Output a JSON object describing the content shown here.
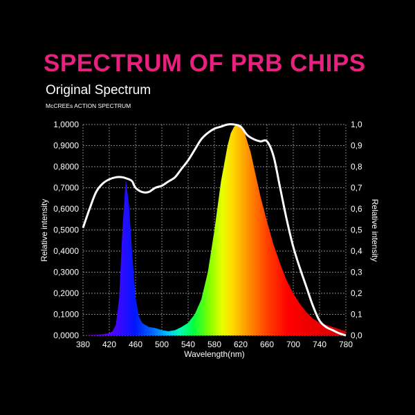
{
  "header": {
    "title": "SPECTRUM OF PRB CHIPS",
    "subtitle": "Original Spectrum",
    "series2_label": "McCREEs ACTION SPECTRUM"
  },
  "colors": {
    "title": "#e8217f",
    "background": "#000000",
    "action_curve": "#ffffff",
    "grid": "#bbbbbb"
  },
  "chart_data": {
    "type": "area",
    "title": "SPECTRUM OF PRB CHIPS",
    "xlabel": "Wavelength(nm)",
    "ylabel_left": "Relative intensity",
    "ylabel_right": "Relative intensity",
    "xlim": [
      380,
      780
    ],
    "ylim": [
      0,
      1
    ],
    "grid": true,
    "x_ticks": [
      "380",
      "420",
      "460",
      "500",
      "540",
      "580",
      "620",
      "660",
      "700",
      "740",
      "780"
    ],
    "y_ticks_left": [
      "0,0000",
      "0,1000",
      "0,2000",
      "0,3000",
      "0,4000",
      "0,5000",
      "0,6000",
      "0,7000",
      "0,8000",
      "0,9000",
      "1,0000"
    ],
    "y_ticks_right": [
      "0,0",
      "0,1",
      "0,2",
      "0,3",
      "0,4",
      "0,5",
      "0,6",
      "0,7",
      "0,8",
      "0,9",
      "1,0"
    ],
    "series": [
      {
        "name": "Original Spectrum",
        "x": [
          380,
          400,
          410,
          420,
          425,
          430,
          435,
          440,
          445,
          450,
          455,
          460,
          465,
          470,
          480,
          490,
          500,
          510,
          520,
          530,
          540,
          550,
          560,
          570,
          580,
          590,
          600,
          605,
          610,
          615,
          620,
          625,
          630,
          635,
          640,
          650,
          660,
          670,
          680,
          690,
          700,
          710,
          720,
          730,
          740,
          750,
          760,
          770,
          780
        ],
        "y": [
          0.0,
          0.003,
          0.006,
          0.01,
          0.02,
          0.05,
          0.18,
          0.5,
          0.74,
          0.62,
          0.38,
          0.18,
          0.09,
          0.06,
          0.04,
          0.035,
          0.025,
          0.02,
          0.025,
          0.04,
          0.06,
          0.1,
          0.17,
          0.3,
          0.5,
          0.73,
          0.9,
          0.96,
          0.99,
          1.0,
          0.99,
          0.97,
          0.92,
          0.87,
          0.8,
          0.66,
          0.54,
          0.43,
          0.34,
          0.26,
          0.2,
          0.15,
          0.11,
          0.08,
          0.06,
          0.05,
          0.04,
          0.03,
          0.02
        ]
      },
      {
        "name": "McCREEs ACTION SPECTRUM",
        "x": [
          380,
          390,
          400,
          410,
          420,
          430,
          440,
          450,
          455,
          460,
          470,
          480,
          490,
          500,
          510,
          520,
          530,
          540,
          550,
          560,
          570,
          580,
          590,
          600,
          610,
          620,
          630,
          640,
          650,
          660,
          670,
          680,
          690,
          700,
          710,
          720,
          730,
          740,
          750,
          760,
          770,
          780
        ],
        "y": [
          0.51,
          0.6,
          0.68,
          0.72,
          0.74,
          0.75,
          0.75,
          0.74,
          0.73,
          0.7,
          0.68,
          0.68,
          0.7,
          0.71,
          0.73,
          0.75,
          0.79,
          0.83,
          0.88,
          0.93,
          0.96,
          0.98,
          0.99,
          1.0,
          1.0,
          0.99,
          0.95,
          0.93,
          0.92,
          0.92,
          0.85,
          0.7,
          0.55,
          0.42,
          0.32,
          0.23,
          0.14,
          0.07,
          0.04,
          0.025,
          0.01,
          0.0
        ]
      }
    ]
  }
}
